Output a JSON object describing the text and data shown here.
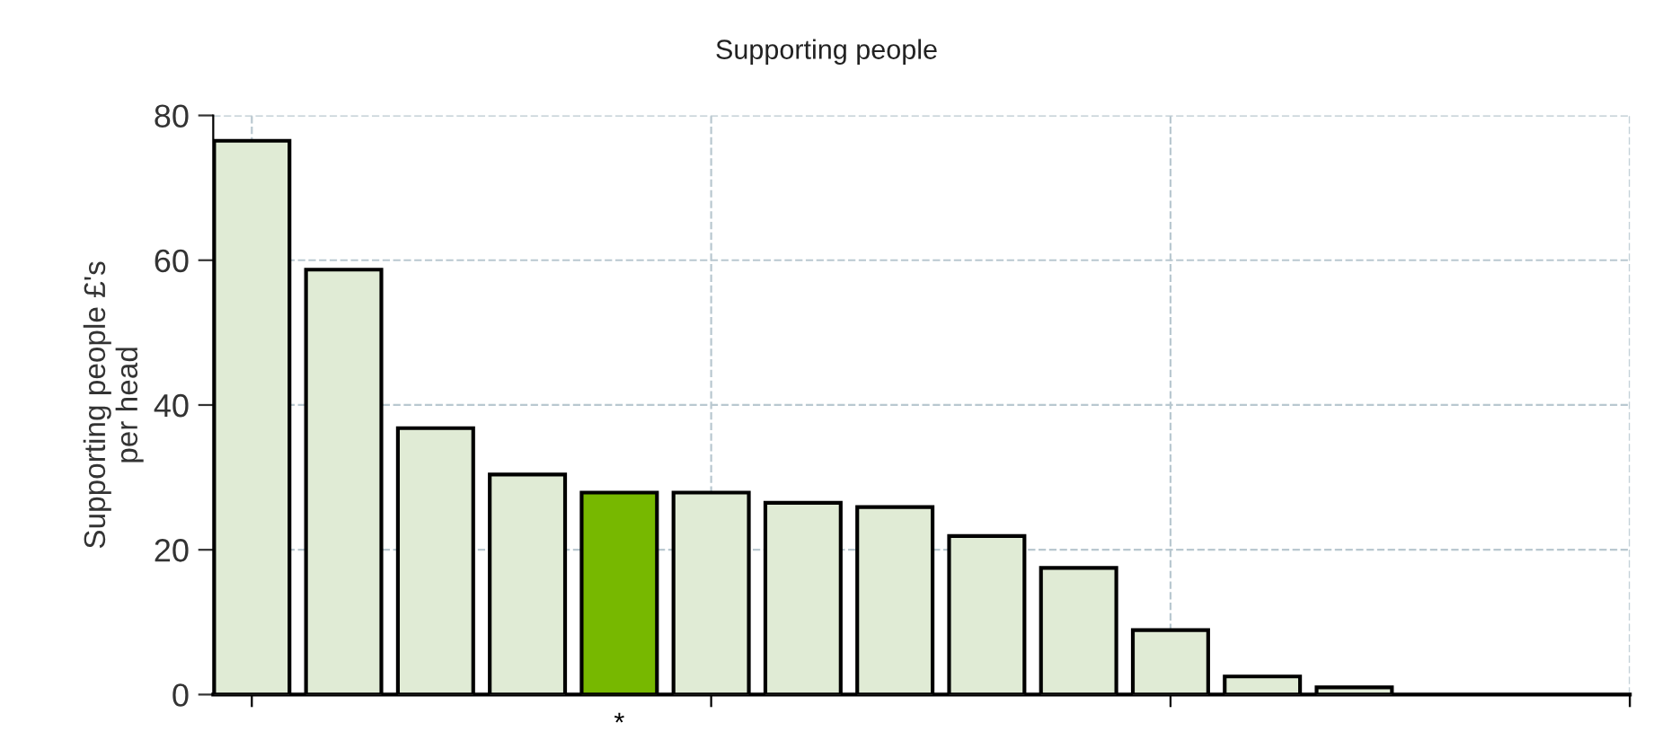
{
  "chart_data": {
    "type": "bar",
    "title": "Supporting people",
    "ylabel": "Supporting people £'s\nper head",
    "categories": [
      null,
      null,
      null,
      null,
      "*",
      null,
      null,
      null,
      null,
      null,
      null,
      null,
      null,
      null,
      null,
      null
    ],
    "values": [
      76.5,
      58.7,
      36.8,
      30.4,
      27.9,
      27.9,
      26.5,
      25.9,
      21.9,
      17.5,
      8.9,
      2.5,
      1.0,
      null,
      null,
      null
    ],
    "colors": [
      "#e0ebd5",
      "#e0ebd5",
      "#e0ebd5",
      "#e0ebd5",
      "#77b800",
      "#e0ebd5",
      "#e0ebd5",
      "#e0ebd5",
      "#e0ebd5",
      "#e0ebd5",
      "#e0ebd5",
      "#e0ebd5",
      "#e0ebd5",
      "#e0ebd5",
      "#e0ebd5",
      "#e0ebd5"
    ],
    "ylim": [
      0,
      80
    ],
    "yticks": [
      0,
      20,
      40,
      60,
      80
    ],
    "grid": true
  }
}
